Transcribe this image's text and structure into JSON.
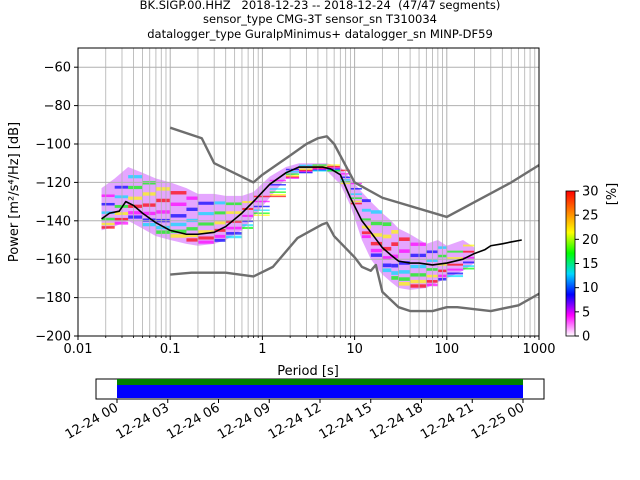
{
  "title": {
    "line1": "BK.SIGP.00.HHZ   2018-12-23 -- 2018-12-24  (47/47 segments)",
    "line2": "sensor_type CMG-3T sensor_sn T310034",
    "line3": "datalogger_type GuralpMinimus+ datalogger_sn MINP-DF59"
  },
  "chart_data": {
    "type": "line",
    "xlabel": "Period [s]",
    "ylabel": "Power [m²/s⁴/Hz] [dB]",
    "xscale": "log",
    "xlim": [
      0.01,
      1000
    ],
    "ylim": [
      -200,
      -50
    ],
    "xticks": [
      {
        "v": 0.01,
        "label": "0.01"
      },
      {
        "v": 0.1,
        "label": "0.1"
      },
      {
        "v": 1,
        "label": "1"
      },
      {
        "v": 10,
        "label": "10"
      },
      {
        "v": 100,
        "label": "100"
      },
      {
        "v": 1000,
        "label": "1000"
      }
    ],
    "yticks": [
      {
        "v": -60,
        "label": "−60"
      },
      {
        "v": -80,
        "label": "−80"
      },
      {
        "v": -100,
        "label": "−100"
      },
      {
        "v": -120,
        "label": "−120"
      },
      {
        "v": -140,
        "label": "−140"
      },
      {
        "v": -160,
        "label": "−160"
      },
      {
        "v": -180,
        "label": "−180"
      },
      {
        "v": -200,
        "label": "−200"
      }
    ],
    "grid": true,
    "series": [
      {
        "color": "#000000",
        "x": [
          0.018,
          0.022,
          0.028,
          0.033,
          0.04,
          0.05,
          0.07,
          0.1,
          0.15,
          0.2,
          0.3,
          0.4,
          0.6,
          0.8,
          1.2,
          1.8,
          2.5,
          3.5,
          4.5,
          5.5,
          7,
          9,
          12,
          15,
          20,
          25,
          30,
          40,
          50,
          70,
          100,
          150,
          200,
          260,
          300,
          400,
          500,
          650
        ],
        "y": [
          -139,
          -136,
          -135,
          -130,
          -132,
          -136,
          -141,
          -145,
          -147,
          -147,
          -146,
          -143,
          -136,
          -130,
          -121,
          -115,
          -112,
          -112,
          -112,
          -113,
          -116,
          -128,
          -140,
          -146,
          -154,
          -158,
          -161,
          -162,
          -162,
          -163,
          -162,
          -160,
          -157,
          -155,
          -153,
          -152,
          -151,
          -150
        ]
      },
      {
        "color": "#6e6e6e",
        "x": [
          0.1,
          0.22,
          0.3,
          0.8,
          1,
          2,
          3,
          4,
          5,
          6,
          10,
          20,
          100,
          500,
          1000
        ],
        "y": [
          -91.5,
          -97,
          -110,
          -120,
          -116,
          -106,
          -100,
          -97,
          -96,
          -100,
          -120,
          -128,
          -138,
          -120,
          -111
        ]
      },
      {
        "color": "#6e6e6e",
        "x": [
          0.1,
          0.17,
          0.4,
          0.8,
          1.3,
          2.4,
          4.4,
          5.0,
          6,
          10,
          12,
          15,
          17,
          20,
          30,
          40,
          70,
          100,
          130,
          300,
          600,
          1000
        ],
        "y": [
          -168,
          -167,
          -167,
          -169,
          -164,
          -149,
          -142,
          -141,
          -148,
          -159,
          -164,
          -166,
          -163,
          -177,
          -185,
          -187,
          -187,
          -185,
          -185,
          -187,
          -184,
          -178
        ]
      }
    ],
    "density_band": {
      "x": [
        0.018,
        0.025,
        0.035,
        0.05,
        0.07,
        0.1,
        0.15,
        0.2,
        0.3,
        0.4,
        0.6,
        0.8,
        1.2,
        1.8,
        2.5,
        3.5,
        5,
        7,
        9,
        12,
        15,
        20,
        25,
        30,
        40,
        60,
        80,
        100,
        150,
        200
      ],
      "upper": [
        -123,
        -118,
        -112,
        -115,
        -118,
        -120,
        -123,
        -126,
        -126,
        -127,
        -127,
        -125,
        -117,
        -112,
        -110,
        -110,
        -110,
        -112,
        -118,
        -125,
        -130,
        -136,
        -140,
        -144,
        -147,
        -152,
        -150,
        -153,
        -150,
        -154
      ],
      "lower": [
        -145,
        -143,
        -140,
        -144,
        -148,
        -150,
        -152,
        -153,
        -152,
        -150,
        -145,
        -138,
        -128,
        -118,
        -115,
        -114,
        -114,
        -121,
        -132,
        -150,
        -160,
        -168,
        -172,
        -175,
        -176,
        -175,
        -172,
        -170,
        -166,
        -162
      ]
    },
    "colorbar": {
      "label": "[%]",
      "min": 0,
      "max": 30,
      "ticks": [
        {
          "v": 0,
          "label": "0"
        },
        {
          "v": 5,
          "label": "5"
        },
        {
          "v": 10,
          "label": "10"
        },
        {
          "v": 15,
          "label": "15"
        },
        {
          "v": 20,
          "label": "20"
        },
        {
          "v": 25,
          "label": "25"
        },
        {
          "v": 30,
          "label": "30"
        }
      ],
      "colors": [
        "#ffffff",
        "#ff00ff",
        "#0000ff",
        "#00d7ff",
        "#00ff00",
        "#ffff00",
        "#ff8000",
        "#ff0000"
      ]
    }
  },
  "timeline": {
    "ticks": [
      "12-24 00",
      "12-24 03",
      "12-24 06",
      "12-24 09",
      "12-24 12",
      "12-24 15",
      "12-24 18",
      "12-24 21",
      "12-25 00"
    ],
    "bar_colors": [
      "#008000",
      "#0000ff"
    ]
  }
}
